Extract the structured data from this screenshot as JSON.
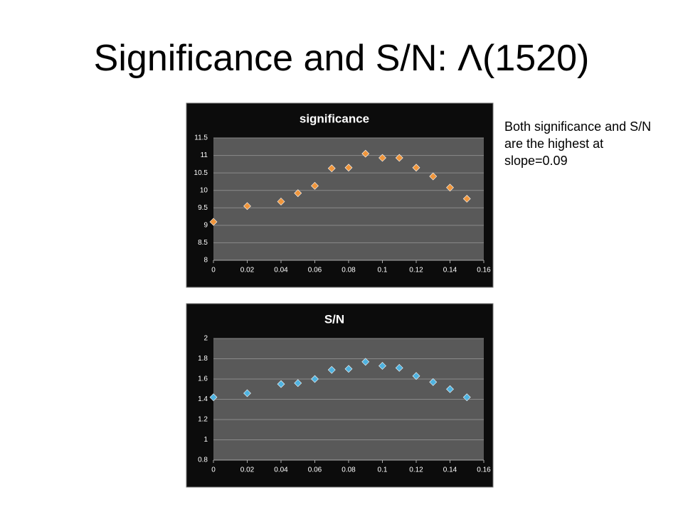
{
  "title": "Significance and S/N: Λ(1520)",
  "note": "Both significance and S/N are the highest at slope=0.09",
  "chart_data": [
    {
      "type": "scatter",
      "title": "significance",
      "color": "#f0963c",
      "grid": true,
      "x": [
        0,
        0.02,
        0.04,
        0.05,
        0.06,
        0.07,
        0.08,
        0.09,
        0.1,
        0.11,
        0.12,
        0.13,
        0.14,
        0.15
      ],
      "values": [
        9.1,
        9.55,
        9.68,
        9.92,
        10.13,
        10.63,
        10.65,
        11.05,
        10.93,
        10.93,
        10.65,
        10.4,
        10.08,
        9.76
      ],
      "xlim": [
        0,
        0.16
      ],
      "xticks": [
        0,
        0.02,
        0.04,
        0.06,
        0.08,
        0.1,
        0.12,
        0.14,
        0.16
      ],
      "ylim": [
        8,
        11.5
      ],
      "yticks": [
        8,
        8.5,
        9,
        9.5,
        10,
        10.5,
        11,
        11.5
      ]
    },
    {
      "type": "scatter",
      "title": "S/N",
      "color": "#4fb3e0",
      "grid": true,
      "x": [
        0,
        0.02,
        0.04,
        0.05,
        0.06,
        0.07,
        0.08,
        0.09,
        0.1,
        0.11,
        0.12,
        0.13,
        0.14,
        0.15
      ],
      "values": [
        1.42,
        1.46,
        1.55,
        1.56,
        1.6,
        1.69,
        1.7,
        1.77,
        1.73,
        1.71,
        1.63,
        1.57,
        1.5,
        1.42
      ],
      "xlim": [
        0,
        0.16
      ],
      "xticks": [
        0,
        0.02,
        0.04,
        0.06,
        0.08,
        0.1,
        0.12,
        0.14,
        0.16
      ],
      "ylim": [
        0.8,
        2
      ],
      "yticks": [
        0.8,
        1,
        1.2,
        1.4,
        1.6,
        1.8,
        2
      ]
    }
  ]
}
